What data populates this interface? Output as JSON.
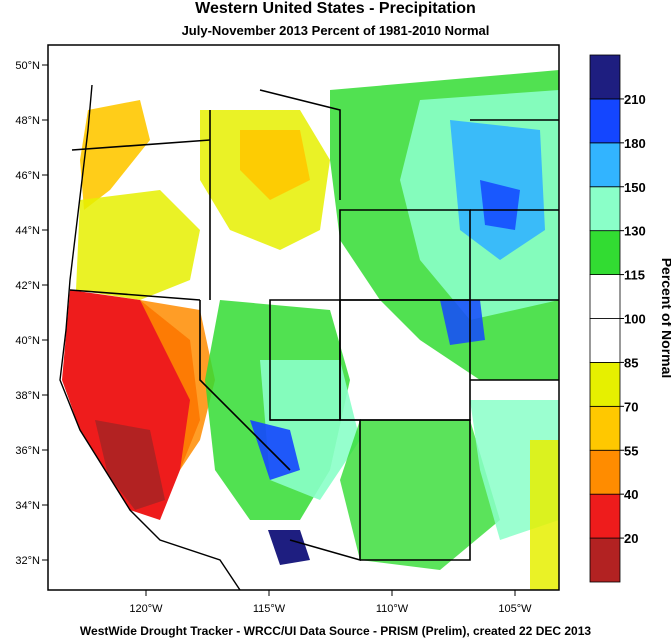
{
  "title": "Western United States - Precipitation",
  "subtitle": "July-November 2013  Percent of 1981-2010 Normal",
  "footer": "WestWide Drought Tracker - WRCC/UI  Data Source - PRISM (Prelim), created 22 DEC 2013",
  "colorbar": {
    "label": "Percent of Normal",
    "ticks": [
      "20",
      "40",
      "55",
      "70",
      "85",
      "100",
      "115",
      "130",
      "150",
      "180",
      "210"
    ],
    "colors": [
      "#b22222",
      "#ee1c1c",
      "#ff8c00",
      "#ffc800",
      "#e6f000",
      "#ffffff",
      "#ffffff",
      "#32dc32",
      "#8affc8",
      "#32b4ff",
      "#1446ff",
      "#1e1e80"
    ]
  },
  "axes": {
    "lat_labels": [
      "50°N",
      "48°N",
      "46°N",
      "44°N",
      "42°N",
      "40°N",
      "38°N",
      "36°N",
      "34°N",
      "32°N"
    ],
    "lon_labels": [
      "120°W",
      "115°W",
      "110°W",
      "105°W"
    ]
  }
}
